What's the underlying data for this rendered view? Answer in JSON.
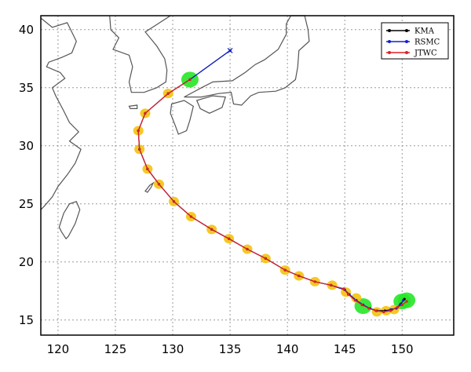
{
  "chart_data": {
    "type": "line",
    "title": "",
    "xlabel": "",
    "ylabel": "",
    "xlim": [
      118.5,
      154.5
    ],
    "ylim": [
      13.7,
      41.2
    ],
    "xticks": [
      120,
      125,
      130,
      135,
      140,
      145,
      150
    ],
    "yticks": [
      15,
      20,
      25,
      30,
      35,
      40
    ],
    "grid": true,
    "legend_position": "top-right",
    "series": [
      {
        "name": "KMA",
        "color": "#000000",
        "x": [
          150.2,
          149.9,
          149.6,
          149.1,
          148.5,
          147.8,
          147.2,
          146.6,
          146.0,
          145.4,
          145.0,
          143.8,
          142.4,
          141.0,
          139.8,
          138.1,
          136.5,
          134.9,
          133.4,
          131.6,
          130.1,
          128.8,
          127.8,
          127.1,
          127.0,
          127.6,
          129.6,
          131.5,
          135.0
        ],
        "y": [
          16.8,
          16.4,
          16.1,
          15.9,
          15.8,
          15.8,
          16.0,
          16.3,
          16.7,
          17.2,
          17.6,
          18.0,
          18.3,
          18.8,
          19.3,
          20.3,
          21.1,
          22.0,
          22.8,
          23.9,
          25.2,
          26.7,
          28.0,
          29.7,
          31.3,
          32.8,
          34.5,
          35.7,
          38.2
        ]
      },
      {
        "name": "RSMC",
        "color": "#1020d0",
        "x": [
          150.1,
          149.8,
          149.5,
          149.0,
          148.4,
          147.8,
          147.2,
          146.6,
          146.0,
          145.4,
          145.0,
          143.8,
          142.4,
          141.0,
          139.8,
          138.1,
          136.5,
          134.9,
          133.4,
          131.6,
          130.1,
          128.8,
          127.8,
          127.1,
          127.0,
          127.6,
          129.6,
          131.5,
          135.0
        ],
        "y": [
          16.7,
          16.3,
          16.0,
          15.9,
          15.7,
          15.8,
          16.0,
          16.3,
          16.7,
          17.2,
          17.6,
          18.0,
          18.3,
          18.8,
          19.3,
          20.3,
          21.1,
          22.0,
          22.8,
          23.9,
          25.2,
          26.7,
          28.0,
          29.7,
          31.3,
          32.8,
          34.5,
          35.7,
          38.2
        ]
      },
      {
        "name": "JTWC",
        "color": "#e02020",
        "x": [
          150.4,
          150.0,
          149.6,
          149.0,
          148.4,
          147.7,
          147.1,
          146.5,
          145.9,
          145.3,
          144.9,
          143.8,
          142.4,
          141.0,
          139.8,
          138.1,
          136.5,
          134.9,
          133.4,
          131.6,
          130.1,
          128.8,
          127.8,
          127.1,
          127.0,
          127.6,
          129.6,
          131.5
        ],
        "y": [
          16.6,
          16.3,
          16.1,
          15.8,
          15.7,
          15.8,
          16.0,
          16.3,
          16.7,
          17.2,
          17.7,
          18.0,
          18.3,
          18.8,
          19.3,
          20.3,
          21.1,
          22.0,
          22.8,
          23.9,
          25.2,
          26.7,
          28.0,
          29.7,
          31.3,
          32.8,
          34.5,
          35.7
        ]
      }
    ],
    "highlights": [
      {
        "color": "#27e627",
        "points": [
          [
            150.0,
            16.6
          ],
          [
            150.4,
            16.7
          ],
          [
            146.6,
            16.2
          ],
          [
            131.5,
            35.7
          ]
        ]
      },
      {
        "color": "#f4c20d",
        "points": [
          [
            149.3,
            15.9
          ],
          [
            148.6,
            15.8
          ],
          [
            147.8,
            15.7
          ],
          [
            146.0,
            16.9
          ],
          [
            145.1,
            17.4
          ],
          [
            143.9,
            18.0
          ],
          [
            142.4,
            18.3
          ],
          [
            141.0,
            18.8
          ],
          [
            139.8,
            19.3
          ],
          [
            138.1,
            20.3
          ],
          [
            136.5,
            21.1
          ],
          [
            134.9,
            22.0
          ],
          [
            133.4,
            22.8
          ],
          [
            131.6,
            23.9
          ],
          [
            130.1,
            25.2
          ],
          [
            128.8,
            26.7
          ],
          [
            127.8,
            28.0
          ],
          [
            127.1,
            29.7
          ],
          [
            127.0,
            31.3
          ],
          [
            127.6,
            32.8
          ],
          [
            129.6,
            34.5
          ]
        ]
      }
    ]
  }
}
